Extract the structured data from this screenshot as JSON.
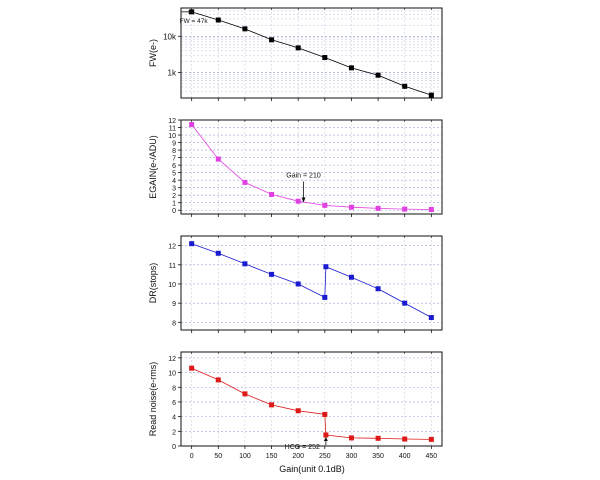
{
  "xlabel": "Gain(unit 0.1dB)",
  "x_ticks": [
    0,
    50,
    100,
    150,
    200,
    250,
    300,
    350,
    400,
    450
  ],
  "chart_data": [
    {
      "type": "line",
      "ylabel": "FW(e-)",
      "yscale": "log",
      "ylim": [
        200,
        60000
      ],
      "y_ticks": [
        1000,
        10000
      ],
      "y_tick_labels": [
        "1k",
        "10k"
      ],
      "color": "#000000",
      "grid": true,
      "x": [
        0,
        50,
        100,
        150,
        200,
        250,
        300,
        350,
        400,
        450
      ],
      "y": [
        47000,
        28000,
        16000,
        8000,
        4800,
        2600,
        1350,
        850,
        420,
        240
      ],
      "annotations": [
        {
          "text": "FW = 47k",
          "x": 0,
          "y": 47000
        }
      ]
    },
    {
      "type": "line",
      "ylabel": "EGAIN(e-/ADU)",
      "ylim": [
        -0.5,
        12
      ],
      "y_ticks": [
        0,
        1,
        2,
        3,
        4,
        5,
        6,
        7,
        8,
        9,
        10,
        11,
        12
      ],
      "color": "#e040e0",
      "grid": true,
      "x": [
        0,
        50,
        100,
        150,
        200,
        250,
        300,
        350,
        400,
        450
      ],
      "y": [
        11.4,
        6.8,
        3.7,
        2.1,
        1.2,
        0.65,
        0.4,
        0.25,
        0.15,
        0.1
      ],
      "annotations": [
        {
          "text": "Gain = 210",
          "x": 210,
          "y": 0.9
        }
      ]
    },
    {
      "type": "line",
      "ylabel": "DR(stops)",
      "ylim": [
        7.6,
        12.5
      ],
      "y_ticks": [
        8,
        9,
        10,
        11,
        12
      ],
      "color": "#1a1ad0",
      "grid": true,
      "x": [
        0,
        50,
        100,
        150,
        200,
        250,
        252,
        300,
        350,
        400,
        450
      ],
      "y": [
        12.1,
        11.6,
        11.05,
        10.5,
        10.0,
        9.3,
        10.9,
        10.35,
        9.75,
        9.0,
        8.25
      ]
    },
    {
      "type": "line",
      "ylabel": "Read noise(e-rms)",
      "ylim": [
        0,
        12.8
      ],
      "y_ticks": [
        0,
        2,
        4,
        6,
        8,
        10,
        12
      ],
      "color": "#dd1a1a",
      "grid": true,
      "x": [
        0,
        50,
        100,
        150,
        200,
        250,
        252,
        300,
        350,
        400,
        450
      ],
      "y": [
        10.6,
        9.0,
        7.1,
        5.6,
        4.8,
        4.3,
        1.5,
        1.1,
        1.05,
        0.95,
        0.9
      ],
      "annotations": [
        {
          "text": "HCG = 252",
          "x": 252,
          "y": 1.5
        }
      ]
    }
  ]
}
